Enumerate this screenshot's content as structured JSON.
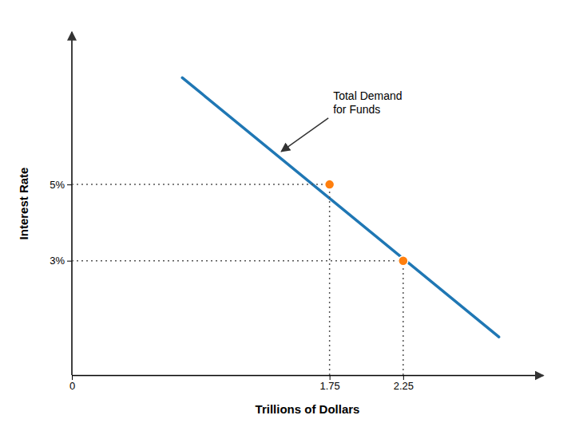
{
  "chart_data": {
    "type": "line",
    "xlabel": "Trillions of Dollars",
    "ylabel": "Interest Rate",
    "annotations": [
      "Total Demand\nfor Funds"
    ],
    "series": [
      {
        "type": "line",
        "x": [
          0.75,
          2.9
        ],
        "values": [
          7.8,
          1.0
        ]
      },
      {
        "type": "scatter",
        "x": [
          1.75,
          2.25
        ],
        "values": [
          5,
          3
        ]
      }
    ],
    "xlim": [
      0,
      3.2
    ],
    "ylim": [
      0,
      9
    ],
    "xticks": [
      0,
      1.75,
      2.25
    ],
    "yticks": [
      {
        "value": 5,
        "label": "5%"
      },
      {
        "value": 3,
        "label": "3%"
      }
    ],
    "grid": false
  }
}
